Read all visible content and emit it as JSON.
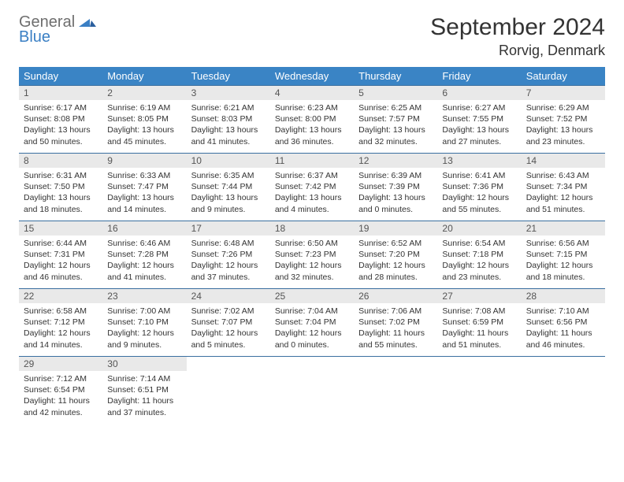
{
  "logo": {
    "general": "General",
    "blue": "Blue"
  },
  "title": "September 2024",
  "location": "Rorvig, Denmark",
  "weekdays": [
    "Sunday",
    "Monday",
    "Tuesday",
    "Wednesday",
    "Thursday",
    "Friday",
    "Saturday"
  ],
  "colors": {
    "header_bg": "#3a84c5",
    "row_border": "#3a6fa0",
    "daynum_bg": "#e9e9e9",
    "logo_gray": "#6e6e6e",
    "logo_blue": "#3a7fc4"
  },
  "days": [
    {
      "n": "1",
      "sr": "Sunrise: 6:17 AM",
      "ss": "Sunset: 8:08 PM",
      "dl1": "Daylight: 13 hours",
      "dl2": "and 50 minutes."
    },
    {
      "n": "2",
      "sr": "Sunrise: 6:19 AM",
      "ss": "Sunset: 8:05 PM",
      "dl1": "Daylight: 13 hours",
      "dl2": "and 45 minutes."
    },
    {
      "n": "3",
      "sr": "Sunrise: 6:21 AM",
      "ss": "Sunset: 8:03 PM",
      "dl1": "Daylight: 13 hours",
      "dl2": "and 41 minutes."
    },
    {
      "n": "4",
      "sr": "Sunrise: 6:23 AM",
      "ss": "Sunset: 8:00 PM",
      "dl1": "Daylight: 13 hours",
      "dl2": "and 36 minutes."
    },
    {
      "n": "5",
      "sr": "Sunrise: 6:25 AM",
      "ss": "Sunset: 7:57 PM",
      "dl1": "Daylight: 13 hours",
      "dl2": "and 32 minutes."
    },
    {
      "n": "6",
      "sr": "Sunrise: 6:27 AM",
      "ss": "Sunset: 7:55 PM",
      "dl1": "Daylight: 13 hours",
      "dl2": "and 27 minutes."
    },
    {
      "n": "7",
      "sr": "Sunrise: 6:29 AM",
      "ss": "Sunset: 7:52 PM",
      "dl1": "Daylight: 13 hours",
      "dl2": "and 23 minutes."
    },
    {
      "n": "8",
      "sr": "Sunrise: 6:31 AM",
      "ss": "Sunset: 7:50 PM",
      "dl1": "Daylight: 13 hours",
      "dl2": "and 18 minutes."
    },
    {
      "n": "9",
      "sr": "Sunrise: 6:33 AM",
      "ss": "Sunset: 7:47 PM",
      "dl1": "Daylight: 13 hours",
      "dl2": "and 14 minutes."
    },
    {
      "n": "10",
      "sr": "Sunrise: 6:35 AM",
      "ss": "Sunset: 7:44 PM",
      "dl1": "Daylight: 13 hours",
      "dl2": "and 9 minutes."
    },
    {
      "n": "11",
      "sr": "Sunrise: 6:37 AM",
      "ss": "Sunset: 7:42 PM",
      "dl1": "Daylight: 13 hours",
      "dl2": "and 4 minutes."
    },
    {
      "n": "12",
      "sr": "Sunrise: 6:39 AM",
      "ss": "Sunset: 7:39 PM",
      "dl1": "Daylight: 13 hours",
      "dl2": "and 0 minutes."
    },
    {
      "n": "13",
      "sr": "Sunrise: 6:41 AM",
      "ss": "Sunset: 7:36 PM",
      "dl1": "Daylight: 12 hours",
      "dl2": "and 55 minutes."
    },
    {
      "n": "14",
      "sr": "Sunrise: 6:43 AM",
      "ss": "Sunset: 7:34 PM",
      "dl1": "Daylight: 12 hours",
      "dl2": "and 51 minutes."
    },
    {
      "n": "15",
      "sr": "Sunrise: 6:44 AM",
      "ss": "Sunset: 7:31 PM",
      "dl1": "Daylight: 12 hours",
      "dl2": "and 46 minutes."
    },
    {
      "n": "16",
      "sr": "Sunrise: 6:46 AM",
      "ss": "Sunset: 7:28 PM",
      "dl1": "Daylight: 12 hours",
      "dl2": "and 41 minutes."
    },
    {
      "n": "17",
      "sr": "Sunrise: 6:48 AM",
      "ss": "Sunset: 7:26 PM",
      "dl1": "Daylight: 12 hours",
      "dl2": "and 37 minutes."
    },
    {
      "n": "18",
      "sr": "Sunrise: 6:50 AM",
      "ss": "Sunset: 7:23 PM",
      "dl1": "Daylight: 12 hours",
      "dl2": "and 32 minutes."
    },
    {
      "n": "19",
      "sr": "Sunrise: 6:52 AM",
      "ss": "Sunset: 7:20 PM",
      "dl1": "Daylight: 12 hours",
      "dl2": "and 28 minutes."
    },
    {
      "n": "20",
      "sr": "Sunrise: 6:54 AM",
      "ss": "Sunset: 7:18 PM",
      "dl1": "Daylight: 12 hours",
      "dl2": "and 23 minutes."
    },
    {
      "n": "21",
      "sr": "Sunrise: 6:56 AM",
      "ss": "Sunset: 7:15 PM",
      "dl1": "Daylight: 12 hours",
      "dl2": "and 18 minutes."
    },
    {
      "n": "22",
      "sr": "Sunrise: 6:58 AM",
      "ss": "Sunset: 7:12 PM",
      "dl1": "Daylight: 12 hours",
      "dl2": "and 14 minutes."
    },
    {
      "n": "23",
      "sr": "Sunrise: 7:00 AM",
      "ss": "Sunset: 7:10 PM",
      "dl1": "Daylight: 12 hours",
      "dl2": "and 9 minutes."
    },
    {
      "n": "24",
      "sr": "Sunrise: 7:02 AM",
      "ss": "Sunset: 7:07 PM",
      "dl1": "Daylight: 12 hours",
      "dl2": "and 5 minutes."
    },
    {
      "n": "25",
      "sr": "Sunrise: 7:04 AM",
      "ss": "Sunset: 7:04 PM",
      "dl1": "Daylight: 12 hours",
      "dl2": "and 0 minutes."
    },
    {
      "n": "26",
      "sr": "Sunrise: 7:06 AM",
      "ss": "Sunset: 7:02 PM",
      "dl1": "Daylight: 11 hours",
      "dl2": "and 55 minutes."
    },
    {
      "n": "27",
      "sr": "Sunrise: 7:08 AM",
      "ss": "Sunset: 6:59 PM",
      "dl1": "Daylight: 11 hours",
      "dl2": "and 51 minutes."
    },
    {
      "n": "28",
      "sr": "Sunrise: 7:10 AM",
      "ss": "Sunset: 6:56 PM",
      "dl1": "Daylight: 11 hours",
      "dl2": "and 46 minutes."
    },
    {
      "n": "29",
      "sr": "Sunrise: 7:12 AM",
      "ss": "Sunset: 6:54 PM",
      "dl1": "Daylight: 11 hours",
      "dl2": "and 42 minutes."
    },
    {
      "n": "30",
      "sr": "Sunrise: 7:14 AM",
      "ss": "Sunset: 6:51 PM",
      "dl1": "Daylight: 11 hours",
      "dl2": "and 37 minutes."
    }
  ]
}
